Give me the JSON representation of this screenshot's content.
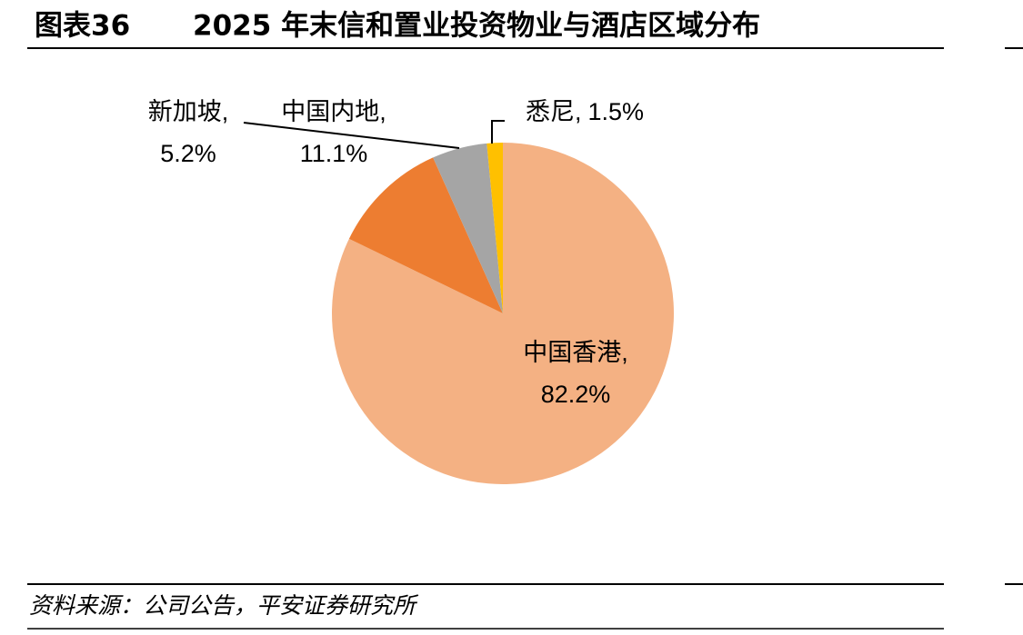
{
  "chart_data": {
    "type": "pie",
    "figure_number": "图表36",
    "title": "2025 年末信和置业投资物业与酒店区域分布",
    "categories": [
      "中国香港,",
      "中国内地,",
      "新加坡,",
      "悉尼,"
    ],
    "values": [
      82.2,
      11.1,
      5.2,
      1.5
    ],
    "value_labels": [
      "82.2%",
      "11.1%",
      "5.2%",
      "1.5%"
    ],
    "colors": [
      "#f4b183",
      "#ed7d31",
      "#a5a5a5",
      "#ffc000"
    ],
    "source": "资料来源：公司公告，平安证券研究所"
  }
}
